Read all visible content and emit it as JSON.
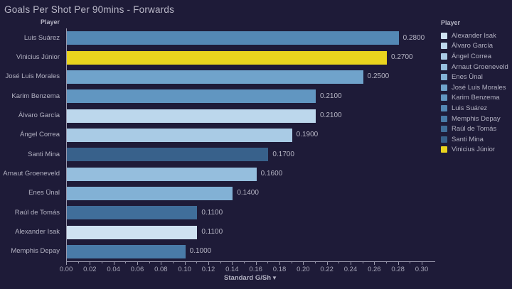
{
  "title": "Goals Per Shot Per 90mins - Forwards",
  "row_header": "Player",
  "axis": {
    "label": "Standard G/Sh",
    "sort_icon": "▼"
  },
  "colors": {
    "background": "#1e1b38",
    "highlight_yellow": "#e9d41e",
    "axis_line": "#9a99ad",
    "text_primary": "#b2b1c1"
  },
  "legend": {
    "title": "Player",
    "items": [
      {
        "label": "Alexander Isak",
        "color": "#cfe2f1"
      },
      {
        "label": "Álvaro García",
        "color": "#bcd7ec"
      },
      {
        "label": "Ángel Correa",
        "color": "#a9cbe5"
      },
      {
        "label": "Arnaut Groeneveld",
        "color": "#95bedd"
      },
      {
        "label": "Enes Ünal",
        "color": "#82b1d5"
      },
      {
        "label": "José Luis Morales",
        "color": "#70a3cb"
      },
      {
        "label": "Karim Benzema",
        "color": "#6196c1"
      },
      {
        "label": "Luis Suárez",
        "color": "#5488b5"
      },
      {
        "label": "Memphis Depay",
        "color": "#497ba8"
      },
      {
        "label": "Raúl de Tomás",
        "color": "#406e9a"
      },
      {
        "label": "Santi Mina",
        "color": "#38618b"
      },
      {
        "label": "Vinicius Júnior",
        "color": "#e9d41e"
      }
    ]
  },
  "chart_data": {
    "type": "bar",
    "orientation": "horizontal",
    "title": "Goals Per Shot Per 90mins - Forwards",
    "xlabel": "Standard G/Sh",
    "ylabel": "Player",
    "xlim": [
      0,
      0.31
    ],
    "xticks": [
      0.0,
      0.02,
      0.04,
      0.06,
      0.08,
      0.1,
      0.12,
      0.14,
      0.16,
      0.18,
      0.2,
      0.22,
      0.24,
      0.26,
      0.28,
      0.3
    ],
    "minor_tick_step": 0.01,
    "value_label_decimals": 4,
    "grid": false,
    "legend_position": "right",
    "sort": "descending by Standard G/Sh",
    "rows": [
      {
        "player": "Luis Suárez",
        "value": 0.28,
        "label": "0.2800",
        "color": "#5488b5"
      },
      {
        "player": "Vinicius Júnior",
        "value": 0.27,
        "label": "0.2700",
        "color": "#e9d41e"
      },
      {
        "player": "José Luis Morales",
        "value": 0.25,
        "label": "0.2500",
        "color": "#70a3cb"
      },
      {
        "player": "Karim Benzema",
        "value": 0.21,
        "label": "0.2100",
        "color": "#6196c1"
      },
      {
        "player": "Álvaro García",
        "value": 0.21,
        "label": "0.2100",
        "color": "#bcd7ec"
      },
      {
        "player": "Ángel Correa",
        "value": 0.19,
        "label": "0.1900",
        "color": "#a9cbe5"
      },
      {
        "player": "Santi Mina",
        "value": 0.17,
        "label": "0.1700",
        "color": "#38618b"
      },
      {
        "player": "Arnaut Groeneveld",
        "value": 0.16,
        "label": "0.1600",
        "color": "#95bedd"
      },
      {
        "player": "Enes Ünal",
        "value": 0.14,
        "label": "0.1400",
        "color": "#82b1d5"
      },
      {
        "player": "Raúl de Tomás",
        "value": 0.11,
        "label": "0.1100",
        "color": "#406e9a"
      },
      {
        "player": "Alexander Isak",
        "value": 0.11,
        "label": "0.1100",
        "color": "#cfe2f1"
      },
      {
        "player": "Memphis Depay",
        "value": 0.1,
        "label": "0.1000",
        "color": "#497ba8"
      }
    ]
  }
}
